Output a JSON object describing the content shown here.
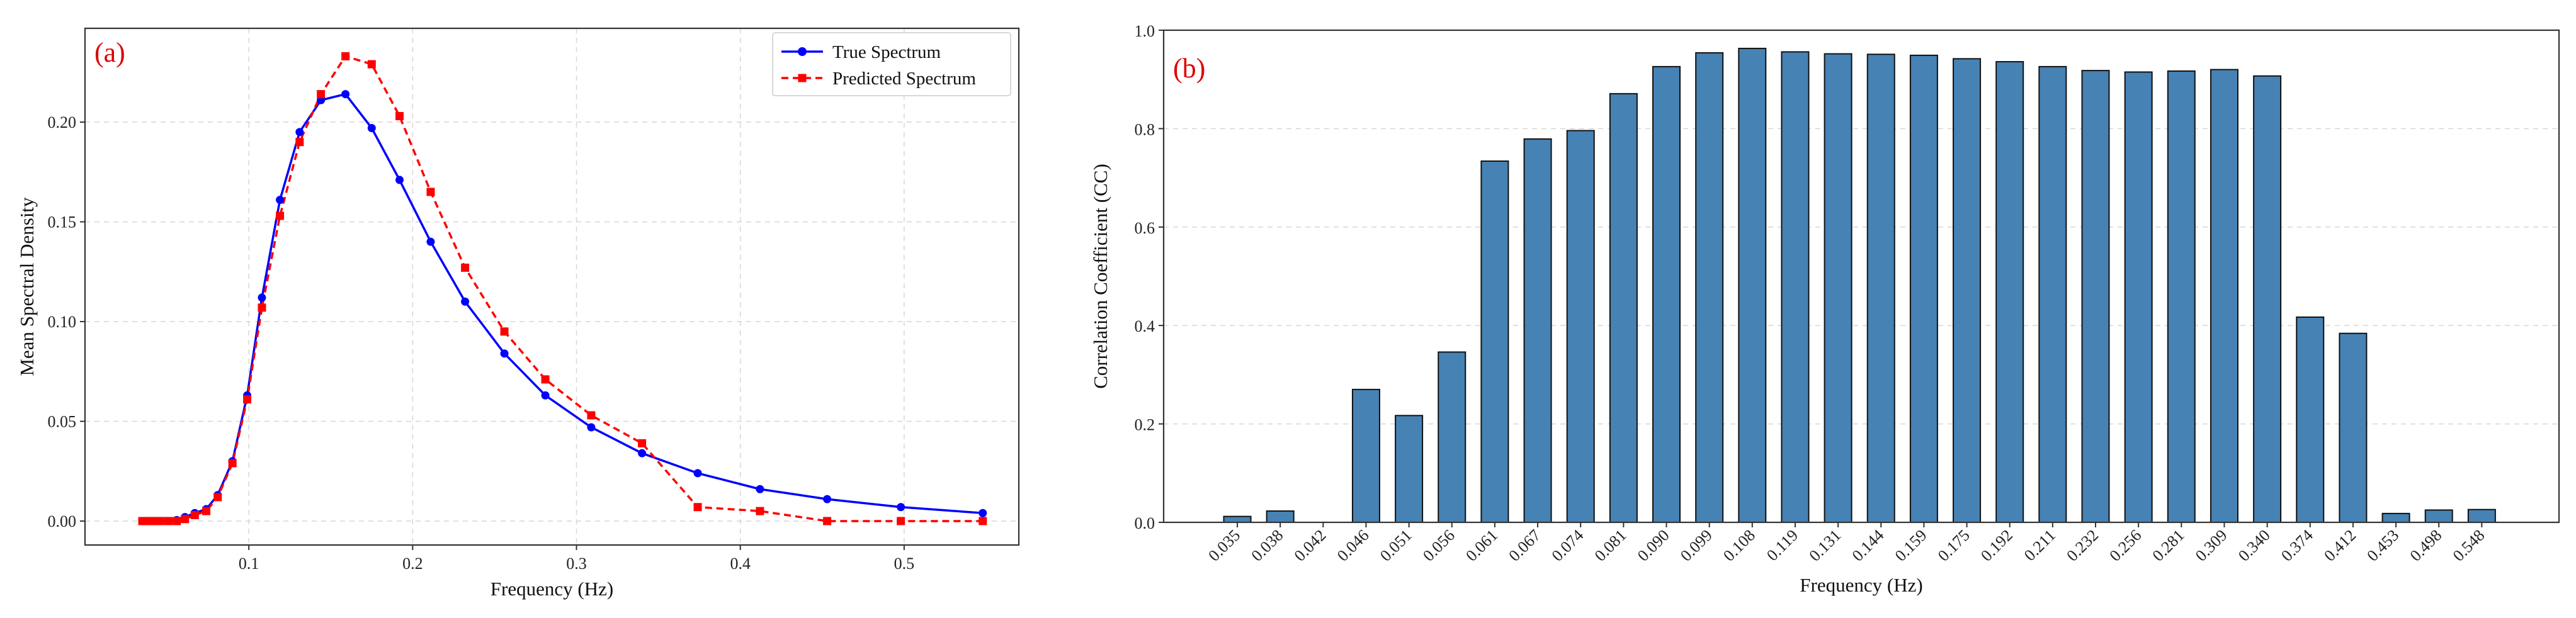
{
  "chart_data": [
    {
      "type": "line",
      "panel_label": "(a)",
      "xlabel": "Frequency (Hz)",
      "ylabel": "Mean Spectral Density",
      "xlim": [
        0.0,
        0.57
      ],
      "ylim": [
        -0.012,
        0.247
      ],
      "xticks": [
        0.1,
        0.2,
        0.3,
        0.4,
        0.5
      ],
      "yticks": [
        0.0,
        0.05,
        0.1,
        0.15,
        0.2
      ],
      "xtick_labels": [
        "0.1",
        "0.2",
        "0.3",
        "0.4",
        "0.5"
      ],
      "ytick_labels": [
        "0.00",
        "0.05",
        "0.10",
        "0.15",
        "0.20"
      ],
      "grid": true,
      "legend_position": "top-right",
      "x": [
        0.035,
        0.038,
        0.042,
        0.046,
        0.051,
        0.056,
        0.061,
        0.067,
        0.074,
        0.081,
        0.09,
        0.099,
        0.108,
        0.119,
        0.131,
        0.144,
        0.159,
        0.175,
        0.192,
        0.211,
        0.232,
        0.256,
        0.281,
        0.309,
        0.34,
        0.374,
        0.412,
        0.453,
        0.498,
        0.548
      ],
      "series": [
        {
          "name": "True Spectrum",
          "color": "#0000ff",
          "marker": "circle",
          "linestyle": "solid",
          "values": [
            0.0,
            0.0,
            0.0,
            0.0,
            0.0,
            0.0005,
            0.002,
            0.004,
            0.006,
            0.013,
            0.03,
            0.063,
            0.112,
            0.161,
            0.195,
            0.211,
            0.214,
            0.197,
            0.171,
            0.14,
            0.11,
            0.084,
            0.063,
            0.047,
            0.034,
            0.024,
            0.016,
            0.011,
            0.007,
            0.004
          ]
        },
        {
          "name": "Predicted Spectrum",
          "color": "#ff0000",
          "marker": "square",
          "linestyle": "dashed",
          "values": [
            0.0,
            0.0,
            0.0,
            0.0,
            0.0,
            0.0,
            0.001,
            0.003,
            0.005,
            0.012,
            0.029,
            0.061,
            0.107,
            0.153,
            0.19,
            0.214,
            0.233,
            0.229,
            0.203,
            0.165,
            0.127,
            0.095,
            0.071,
            0.053,
            0.039,
            0.007,
            0.005,
            0.0,
            0.0,
            0.0
          ]
        }
      ]
    },
    {
      "type": "bar",
      "panel_label": "(b)",
      "xlabel": "Frequency (Hz)",
      "ylabel": "Correlation Coefficient (CC)",
      "ylim": [
        0.0,
        1.0
      ],
      "yticks": [
        0.0,
        0.2,
        0.4,
        0.6,
        0.8,
        1.0
      ],
      "ytick_labels": [
        "0.0",
        "0.2",
        "0.4",
        "0.6",
        "0.8",
        "1.0"
      ],
      "grid": true,
      "color": "#4682b4",
      "categories": [
        "0.035",
        "0.038",
        "0.042",
        "0.046",
        "0.051",
        "0.056",
        "0.061",
        "0.067",
        "0.074",
        "0.081",
        "0.090",
        "0.099",
        "0.108",
        "0.119",
        "0.131",
        "0.144",
        "0.159",
        "0.175",
        "0.192",
        "0.211",
        "0.232",
        "0.256",
        "0.281",
        "0.309",
        "0.340",
        "0.374",
        "0.412",
        "0.453",
        "0.498",
        "0.548"
      ],
      "values": [
        0.012,
        0.023,
        0.0,
        0.27,
        0.217,
        0.346,
        0.734,
        0.779,
        0.796,
        0.871,
        0.926,
        0.954,
        0.963,
        0.956,
        0.952,
        0.951,
        0.949,
        0.942,
        0.936,
        0.926,
        0.918,
        0.915,
        0.917,
        0.92,
        0.907,
        0.417,
        0.384,
        0.018,
        0.025,
        0.026
      ]
    }
  ]
}
